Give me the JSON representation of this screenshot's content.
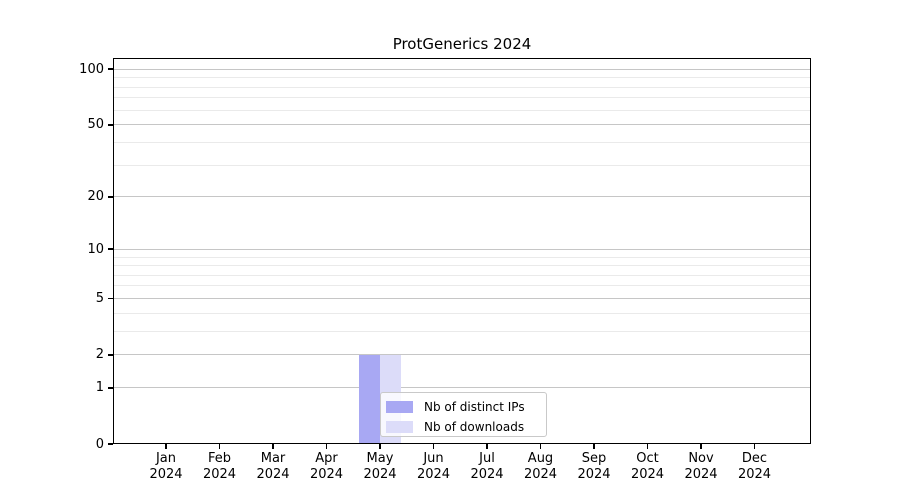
{
  "chart_data": {
    "type": "bar",
    "title": "ProtGenerics 2024",
    "categories": [
      "Jan",
      "Feb",
      "Mar",
      "Apr",
      "May",
      "Jun",
      "Jul",
      "Aug",
      "Sep",
      "Oct",
      "Nov",
      "Dec"
    ],
    "x_tick_second_line": "2024",
    "series": [
      {
        "name": "Nb of distinct IPs",
        "color": "#a8a8f3",
        "values": [
          0,
          0,
          0,
          0,
          2,
          0,
          0,
          0,
          0,
          0,
          0,
          0
        ]
      },
      {
        "name": "Nb of downloads",
        "color": "#dcdcf9",
        "values": [
          0,
          0,
          0,
          0,
          2,
          0,
          0,
          0,
          0,
          0,
          0,
          0
        ]
      }
    ],
    "y_scale": "log10(value+1)",
    "y_major_ticks": [
      0,
      1,
      2,
      5,
      10,
      20,
      50,
      100
    ],
    "y_minor_gridlines": [
      3,
      4,
      6,
      7,
      8,
      9,
      30,
      40,
      60,
      70,
      80,
      90
    ],
    "ylim": [
      0,
      115
    ],
    "grid": "both",
    "legend_position": "inside lower-center"
  },
  "colors": {
    "background": "#ffffff",
    "bar_distinct_ips": "#a8a8f3",
    "bar_downloads": "#dcdcf9",
    "grid_major": "#c6c6c6",
    "grid_minor": "#eaeaea",
    "axis": "#000000",
    "legend_border": "#c9c9c9"
  }
}
